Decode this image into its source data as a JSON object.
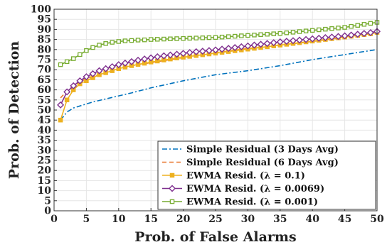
{
  "chart_data": {
    "type": "line",
    "title": "",
    "xlabel": "Prob. of False Alarms",
    "ylabel": "Prob. of Detection",
    "xlim": [
      0,
      50
    ],
    "ylim": [
      0,
      100
    ],
    "xticks": [
      0,
      5,
      10,
      15,
      20,
      25,
      30,
      35,
      40,
      45,
      50
    ],
    "yticks": [
      0,
      5,
      10,
      15,
      20,
      25,
      30,
      35,
      40,
      45,
      50,
      55,
      60,
      65,
      70,
      75,
      80,
      85,
      90,
      95,
      100
    ],
    "grid": true,
    "legend_position": "bottom-right",
    "series": [
      {
        "name": "Simple Residual (3 Days Avg)",
        "color": "#0072bd",
        "line_style": "dashdot",
        "marker": "none",
        "x": [
          1,
          2,
          3,
          4,
          5,
          6,
          8,
          10,
          12,
          15,
          20,
          25,
          30,
          35,
          40,
          45,
          50
        ],
        "y": [
          45,
          49,
          51,
          52,
          53,
          54,
          55.5,
          57,
          58.5,
          61,
          64.5,
          67.5,
          69.5,
          72,
          75,
          77.5,
          80
        ]
      },
      {
        "name": "Simple Residual (6 Days Avg)",
        "color": "#e8772e",
        "line_style": "dashed",
        "marker": "none",
        "x": [
          1,
          2,
          3,
          4,
          5,
          7,
          10,
          13,
          15,
          20,
          25,
          30,
          35,
          40,
          45,
          50
        ],
        "y": [
          56,
          59.5,
          62,
          64,
          65.5,
          67.5,
          70.5,
          72.5,
          73.5,
          76,
          78.5,
          80.5,
          82,
          84,
          86,
          88.5
        ]
      },
      {
        "name": "EWMA Resid. (λ = 0.1)",
        "color": "#edb120",
        "line_style": "solid",
        "marker": "square",
        "x": [
          1,
          2,
          3,
          4,
          5,
          6,
          7,
          8,
          9,
          10,
          11,
          12,
          13,
          14,
          15,
          16,
          17,
          18,
          19,
          20,
          21,
          22,
          23,
          24,
          25,
          26,
          27,
          28,
          29,
          30,
          31,
          32,
          33,
          34,
          35,
          36,
          37,
          38,
          39,
          40,
          41,
          42,
          43,
          44,
          45,
          46,
          47,
          48,
          49,
          50
        ],
        "y": [
          45,
          55,
          60,
          63,
          64.5,
          66,
          67.5,
          68.5,
          69.5,
          70.5,
          71.3,
          72,
          72.6,
          73.2,
          73.8,
          74.3,
          74.8,
          75.3,
          75.8,
          76.2,
          76.6,
          77,
          77.4,
          77.8,
          78.2,
          78.6,
          79,
          79.4,
          79.8,
          80.2,
          80.6,
          81,
          81.4,
          81.8,
          82.2,
          82.6,
          83,
          83.4,
          83.8,
          84.2,
          84.6,
          85,
          85.4,
          85.8,
          86.2,
          86.6,
          87,
          87.4,
          87.8,
          88.5
        ]
      },
      {
        "name": "EWMA Resid. (λ = 0.0069)",
        "color": "#7e2f8e",
        "line_style": "solid",
        "marker": "diamond",
        "x": [
          1,
          2,
          3,
          4,
          5,
          6,
          7,
          8,
          9,
          10,
          11,
          12,
          13,
          14,
          15,
          16,
          17,
          18,
          19,
          20,
          21,
          22,
          23,
          24,
          25,
          26,
          27,
          28,
          29,
          30,
          31,
          32,
          33,
          34,
          35,
          36,
          37,
          38,
          39,
          40,
          41,
          42,
          43,
          44,
          45,
          46,
          47,
          48,
          49,
          50
        ],
        "y": [
          52.5,
          59,
          62,
          64.5,
          66.5,
          68,
          69.5,
          70.5,
          71.5,
          72.5,
          73.3,
          74,
          74.7,
          75.3,
          75.9,
          76.4,
          76.9,
          77.3,
          77.7,
          78.1,
          78.5,
          78.9,
          79.2,
          79.5,
          79.8,
          80.2,
          80.6,
          81,
          81.4,
          81.8,
          82.2,
          82.6,
          83,
          83.4,
          83.8,
          84.1,
          84.4,
          84.7,
          85,
          85.3,
          85.6,
          85.9,
          86.2,
          86.5,
          86.8,
          87.2,
          87.6,
          88,
          88.4,
          89
        ]
      },
      {
        "name": "EWMA Resid. (λ = 0.001)",
        "color": "#77ac30",
        "line_style": "solid",
        "marker": "square",
        "x": [
          1,
          2,
          3,
          4,
          5,
          6,
          7,
          8,
          9,
          10,
          11,
          12,
          13,
          14,
          15,
          16,
          17,
          18,
          19,
          20,
          21,
          22,
          23,
          24,
          25,
          26,
          27,
          28,
          29,
          30,
          31,
          32,
          33,
          34,
          35,
          36,
          37,
          38,
          39,
          40,
          41,
          42,
          43,
          44,
          45,
          46,
          47,
          48,
          49,
          50
        ],
        "y": [
          72.5,
          74,
          75.5,
          77.5,
          79.5,
          81,
          82.2,
          83,
          83.6,
          84,
          84.3,
          84.5,
          84.7,
          84.8,
          85,
          85.1,
          85.2,
          85.3,
          85.4,
          85.5,
          85.6,
          85.7,
          85.8,
          85.9,
          86,
          86.2,
          86.4,
          86.6,
          86.8,
          87,
          87.2,
          87.4,
          87.6,
          87.8,
          88,
          88.3,
          88.6,
          88.9,
          89.2,
          89.5,
          89.8,
          90.1,
          90.4,
          90.7,
          91,
          91.5,
          92,
          92.5,
          93,
          93.5
        ]
      }
    ]
  }
}
